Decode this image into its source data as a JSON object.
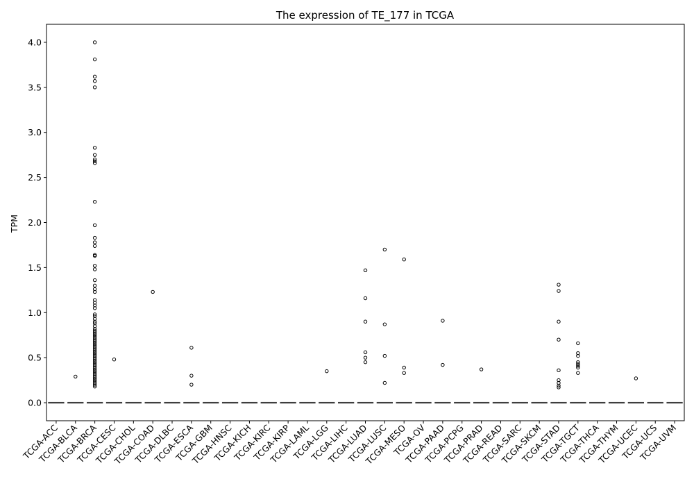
{
  "chart_data": {
    "type": "box",
    "title": "The expression of TE_177 in TCGA",
    "xlabel": "",
    "ylabel": "TPM",
    "ylim": [
      -0.2,
      4.2
    ],
    "yticks": [
      "0.0",
      "0.5",
      "1.0",
      "1.5",
      "2.0",
      "2.5",
      "3.0",
      "3.5",
      "4.0"
    ],
    "grid": false,
    "categories": [
      "TCGA-ACC",
      "TCGA-BLCA",
      "TCGA-BRCA",
      "TCGA-CESC",
      "TCGA-CHOL",
      "TCGA-COAD",
      "TCGA-DLBC",
      "TCGA-ESCA",
      "TCGA-GBM",
      "TCGA-HNSC",
      "TCGA-KICH",
      "TCGA-KIRC",
      "TCGA-KIRP",
      "TCGA-LAML",
      "TCGA-LGG",
      "TCGA-LIHC",
      "TCGA-LUAD",
      "TCGA-LUSC",
      "TCGA-MESO",
      "TCGA-OV",
      "TCGA-PAAD",
      "TCGA-PCPG",
      "TCGA-PRAD",
      "TCGA-READ",
      "TCGA-SARC",
      "TCGA-SKCM",
      "TCGA-STAD",
      "TCGA-TGCT",
      "TCGA-THCA",
      "TCGA-THYM",
      "TCGA-UCEC",
      "TCGA-UCS",
      "TCGA-UVM"
    ],
    "box_stats": {
      "q1": 0,
      "median": 0,
      "q3": 0,
      "whisker_low": 0,
      "whisker_high": 0
    },
    "outliers": [
      [],
      [
        0.29
      ],
      [
        4.0,
        3.81,
        3.62,
        3.57,
        3.5,
        2.83,
        2.75,
        2.7,
        2.68,
        2.66,
        2.23,
        1.97,
        1.83,
        1.78,
        1.74,
        1.64,
        1.63,
        1.52,
        1.48,
        1.36,
        1.3,
        1.26,
        1.23,
        1.14,
        1.11,
        1.08,
        1.05,
        0.98,
        0.96,
        0.93,
        0.9,
        0.88,
        0.85,
        0.82,
        0.8,
        0.78,
        0.76,
        0.74,
        0.72,
        0.7,
        0.68,
        0.66,
        0.64,
        0.62,
        0.6,
        0.58,
        0.56,
        0.54,
        0.52,
        0.5,
        0.48,
        0.46,
        0.44,
        0.42,
        0.4,
        0.38,
        0.36,
        0.34,
        0.32,
        0.3,
        0.28,
        0.26,
        0.24,
        0.22,
        0.2,
        0.18
      ],
      [
        0.48
      ],
      [],
      [
        1.23
      ],
      [],
      [
        0.61,
        0.3,
        0.2
      ],
      [],
      [],
      [],
      [],
      [],
      [],
      [
        0.35
      ],
      [],
      [
        1.47,
        1.16,
        0.9,
        0.56,
        0.5,
        0.45
      ],
      [
        1.7,
        0.87,
        0.52,
        0.22
      ],
      [
        1.59,
        0.39,
        0.33
      ],
      [],
      [
        0.91,
        0.42
      ],
      [],
      [
        0.37
      ],
      [],
      [],
      [],
      [
        1.31,
        1.24,
        0.9,
        0.7,
        0.36,
        0.25,
        0.22,
        0.19,
        0.17
      ],
      [
        0.66,
        0.55,
        0.52,
        0.45,
        0.43,
        0.41,
        0.39,
        0.33
      ],
      [],
      [],
      [
        0.27
      ],
      [],
      []
    ]
  }
}
